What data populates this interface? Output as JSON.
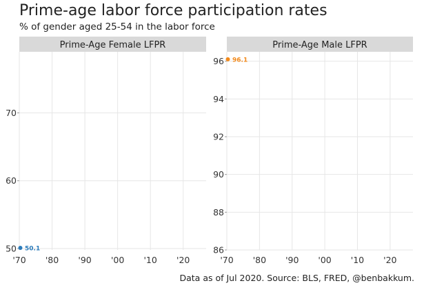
{
  "title": "Prime-age labor force participation rates",
  "subtitle": "% of gender aged 25-54 in the labor force",
  "caption": "Data as of Jul 2020. Source: BLS, FRED, @benbakkum.",
  "chart_data": [
    {
      "type": "line",
      "panel": "Prime-Age Female LFPR",
      "x_ticks": [
        1970,
        1980,
        1990,
        2000,
        2010,
        2020
      ],
      "x_tick_labels": [
        "'70",
        "'80",
        "'90",
        "'00",
        "'10",
        "'20"
      ],
      "xlim": [
        1970,
        2027
      ],
      "y_ticks": [
        50,
        60,
        70
      ],
      "ylim": [
        49.8,
        79
      ],
      "grid": true,
      "color": "#2b7bba",
      "series": [
        {
          "points": [
            {
              "x": 1970,
              "y": 50.1
            }
          ],
          "end_label": "50.1"
        }
      ]
    },
    {
      "type": "line",
      "panel": "Prime-Age Male LFPR",
      "x_ticks": [
        1970,
        1980,
        1990,
        2000,
        2010,
        2020
      ],
      "x_tick_labels": [
        "'70",
        "'80",
        "'90",
        "'00",
        "'10",
        "'20"
      ],
      "xlim": [
        1970,
        2027
      ],
      "y_ticks": [
        86,
        88,
        90,
        92,
        94,
        96
      ],
      "ylim": [
        86,
        96.5
      ],
      "grid": true,
      "color": "#f28a1c",
      "series": [
        {
          "points": [
            {
              "x": 1970,
              "y": 96.1
            }
          ],
          "end_label": "96.1"
        }
      ]
    }
  ]
}
